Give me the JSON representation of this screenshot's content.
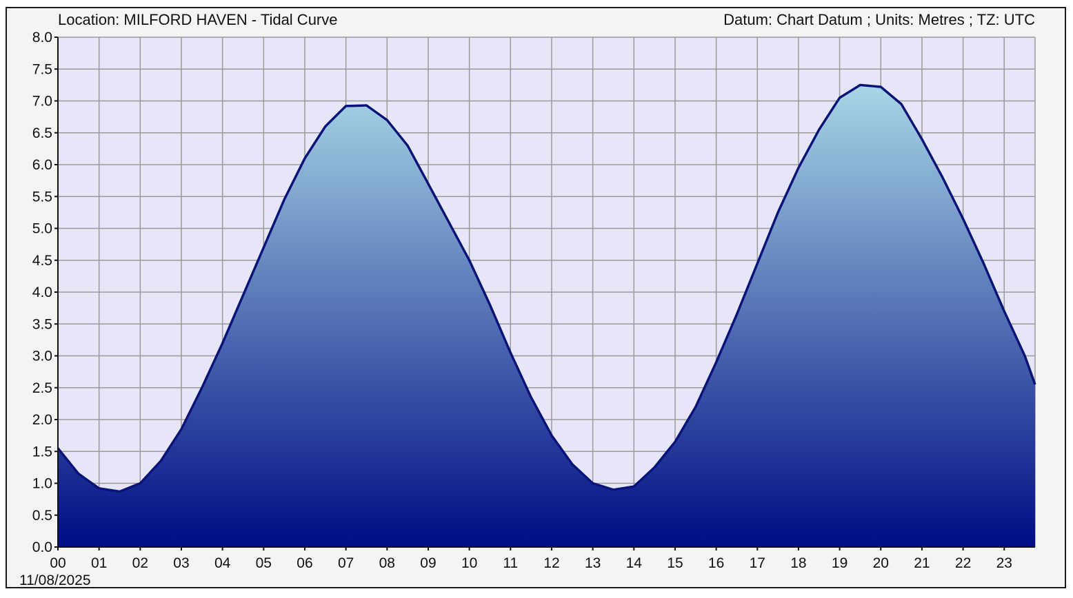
{
  "header": {
    "title": "Location: MILFORD HAVEN - Tidal Curve",
    "meta": "Datum: Chart Datum ; Units: Metres ; TZ: UTC"
  },
  "colors": {
    "plot_background": "#e6e6f8",
    "curve_line": "#0a1478",
    "fill_top": "#a8d6e6",
    "fill_bottom": "#000c84",
    "grid": "#9a9a9a"
  },
  "chart_data": {
    "type": "area",
    "title": "Location: MILFORD HAVEN - Tidal Curve",
    "date_label": "11/08/2025",
    "xlabel": "",
    "ylabel": "",
    "x_ticks": [
      "00",
      "01",
      "02",
      "03",
      "04",
      "05",
      "06",
      "07",
      "08",
      "09",
      "10",
      "11",
      "12",
      "13",
      "14",
      "15",
      "16",
      "17",
      "18",
      "19",
      "20",
      "21",
      "22",
      "23"
    ],
    "y_ticks": [
      "0.0",
      "0.5",
      "1.0",
      "1.5",
      "2.0",
      "2.5",
      "3.0",
      "3.5",
      "4.0",
      "4.5",
      "5.0",
      "5.5",
      "6.0",
      "6.5",
      "7.0",
      "7.5",
      "8.0"
    ],
    "xlim": [
      0,
      23.75
    ],
    "ylim": [
      0,
      8
    ],
    "grid": true,
    "legend": "none",
    "series": [
      {
        "x": [
          0,
          0.5,
          1,
          1.5,
          2,
          2.5,
          3,
          3.5,
          4,
          4.5,
          5,
          5.5,
          6,
          6.5,
          7,
          7.5,
          8,
          8.5,
          9,
          9.5,
          10,
          10.5,
          11,
          11.5,
          12,
          12.5,
          13,
          13.5,
          14,
          14.5,
          15,
          15.5,
          16,
          16.5,
          17,
          17.5,
          18,
          18.5,
          19,
          19.5,
          20,
          20.5,
          21,
          21.5,
          22,
          22.5,
          23,
          23.5,
          23.75
        ],
        "y": [
          1.55,
          1.15,
          0.92,
          0.87,
          1.0,
          1.35,
          1.85,
          2.5,
          3.2,
          3.95,
          4.7,
          5.45,
          6.1,
          6.6,
          6.92,
          6.93,
          6.7,
          6.3,
          5.7,
          5.1,
          4.5,
          3.8,
          3.05,
          2.35,
          1.75,
          1.3,
          1.0,
          0.9,
          0.95,
          1.25,
          1.65,
          2.2,
          2.9,
          3.65,
          4.45,
          5.25,
          5.95,
          6.55,
          7.05,
          7.25,
          7.22,
          6.95,
          6.4,
          5.8,
          5.15,
          4.45,
          3.7,
          3.0,
          2.55
        ]
      }
    ]
  }
}
